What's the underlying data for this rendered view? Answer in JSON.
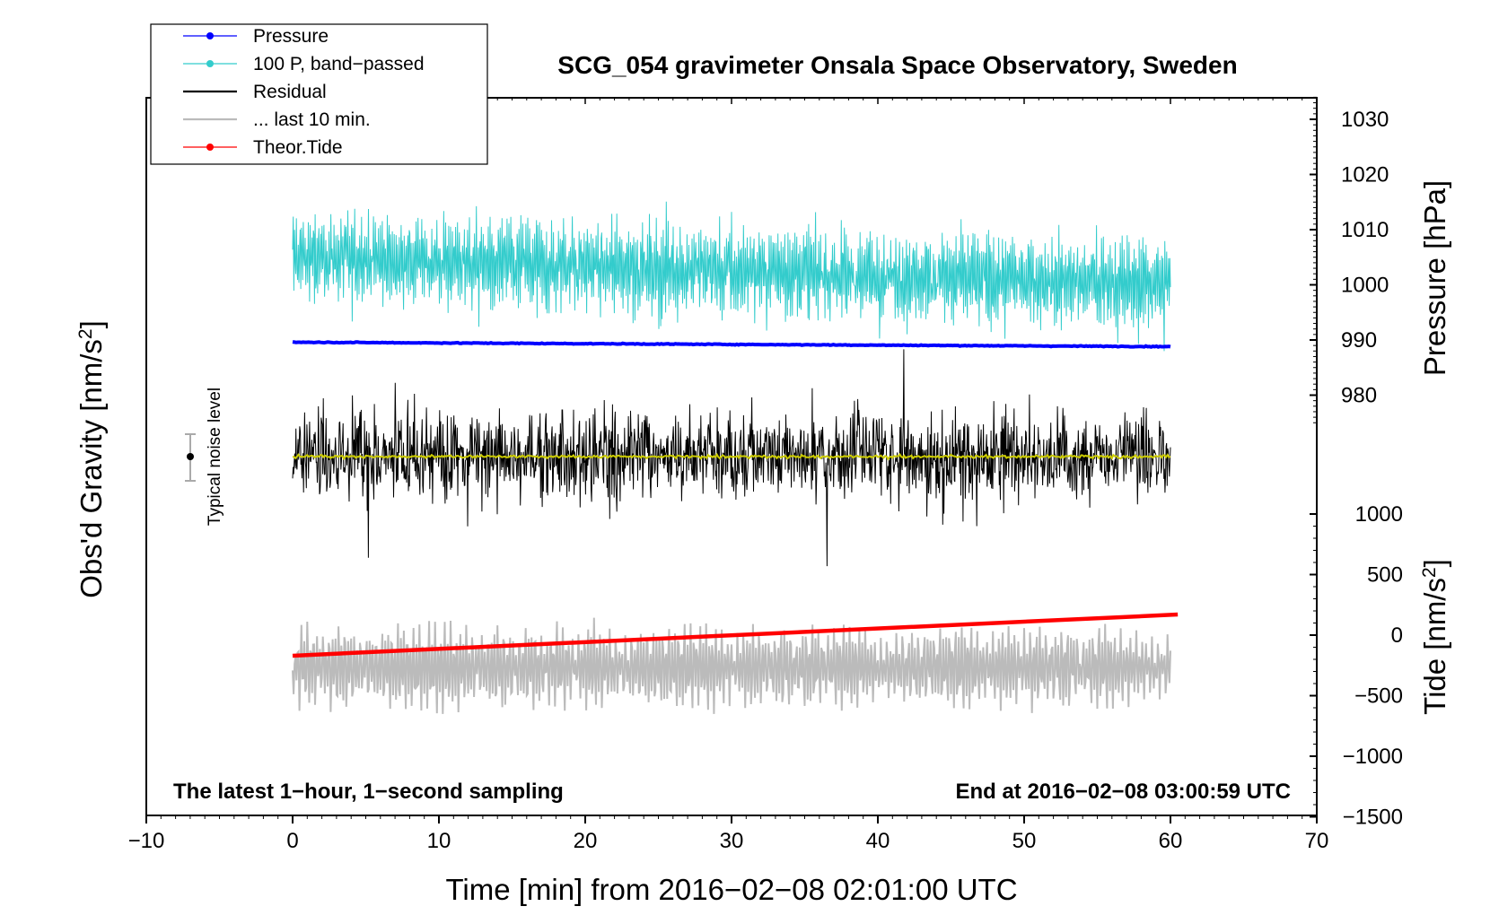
{
  "chart_data": {
    "type": "line",
    "title": "SCG_054 gravimeter Onsala Space Observatory, Sweden",
    "xlabel": "Time [min] from 2016−02−08 02:01:00 UTC",
    "ylabel_left": "Obs'd Gravity [nm/s",
    "ylabel_left_sup": "2",
    "ylabel_left_close": "]",
    "ylabel_right_pressure": "Pressure [hPa]",
    "ylabel_right_tide": "Tide [nm/s",
    "ylabel_right_tide_sup": "2",
    "ylabel_right_tide_close": "]",
    "xlim": [
      -10,
      70
    ],
    "x_ticks": [
      -10,
      0,
      10,
      20,
      30,
      40,
      50,
      60,
      70
    ],
    "x_tick_labels": [
      "−10",
      "0",
      "10",
      "20",
      "30",
      "40",
      "50",
      "60",
      "70"
    ],
    "pressure_axis": {
      "ticks": [
        980,
        990,
        1000,
        1010,
        1020,
        1030
      ],
      "tick_labels": [
        "980",
        "990",
        "1000",
        "1010",
        "1020",
        "1030"
      ]
    },
    "tide_axis": {
      "ticks": [
        -1500,
        -1000,
        -500,
        0,
        500,
        1000
      ],
      "tick_labels": [
        "−1500",
        "−1000",
        "−500",
        "0",
        "500",
        "1000"
      ]
    },
    "legend": [
      {
        "label": "Pressure",
        "color": "#0000ff",
        "marker": true
      },
      {
        "label": "100 P, band−passed",
        "color": "#33cccc",
        "marker": true
      },
      {
        "label": "Residual",
        "color": "#000000",
        "marker": false
      },
      {
        "label": "... last 10 min.",
        "color": "#bbbbbb",
        "marker": false
      },
      {
        "label": "Theor.Tide",
        "color": "#ff0000",
        "marker": true
      }
    ],
    "series": [
      {
        "name": "Pressure",
        "unit": "hPa",
        "x_range": [
          0,
          60
        ],
        "start": 989.6,
        "end": 988.8,
        "color": "#0000ff"
      },
      {
        "name": "100 P, band-passed",
        "unit": "hPa scale",
        "x_range": [
          0,
          60
        ],
        "center": 1005,
        "amplitude": 12,
        "color": "#33cccc"
      },
      {
        "name": "Residual",
        "x_range": [
          0,
          60
        ],
        "color": "#000000",
        "baseline_color": "#cccc00"
      },
      {
        "name": "... last 10 min.",
        "x_range": [
          0,
          60
        ],
        "color": "#bbbbbb"
      },
      {
        "name": "Theor.Tide",
        "unit": "nm/s2",
        "x_range": [
          0,
          60.5
        ],
        "start": -170,
        "end": 170,
        "color": "#ff0000"
      }
    ],
    "noise_label": "Typical noise level",
    "annotation_left": "The latest 1−hour, 1−second sampling",
    "annotation_right": "End at 2016−02−08 03:00:59 UTC"
  }
}
